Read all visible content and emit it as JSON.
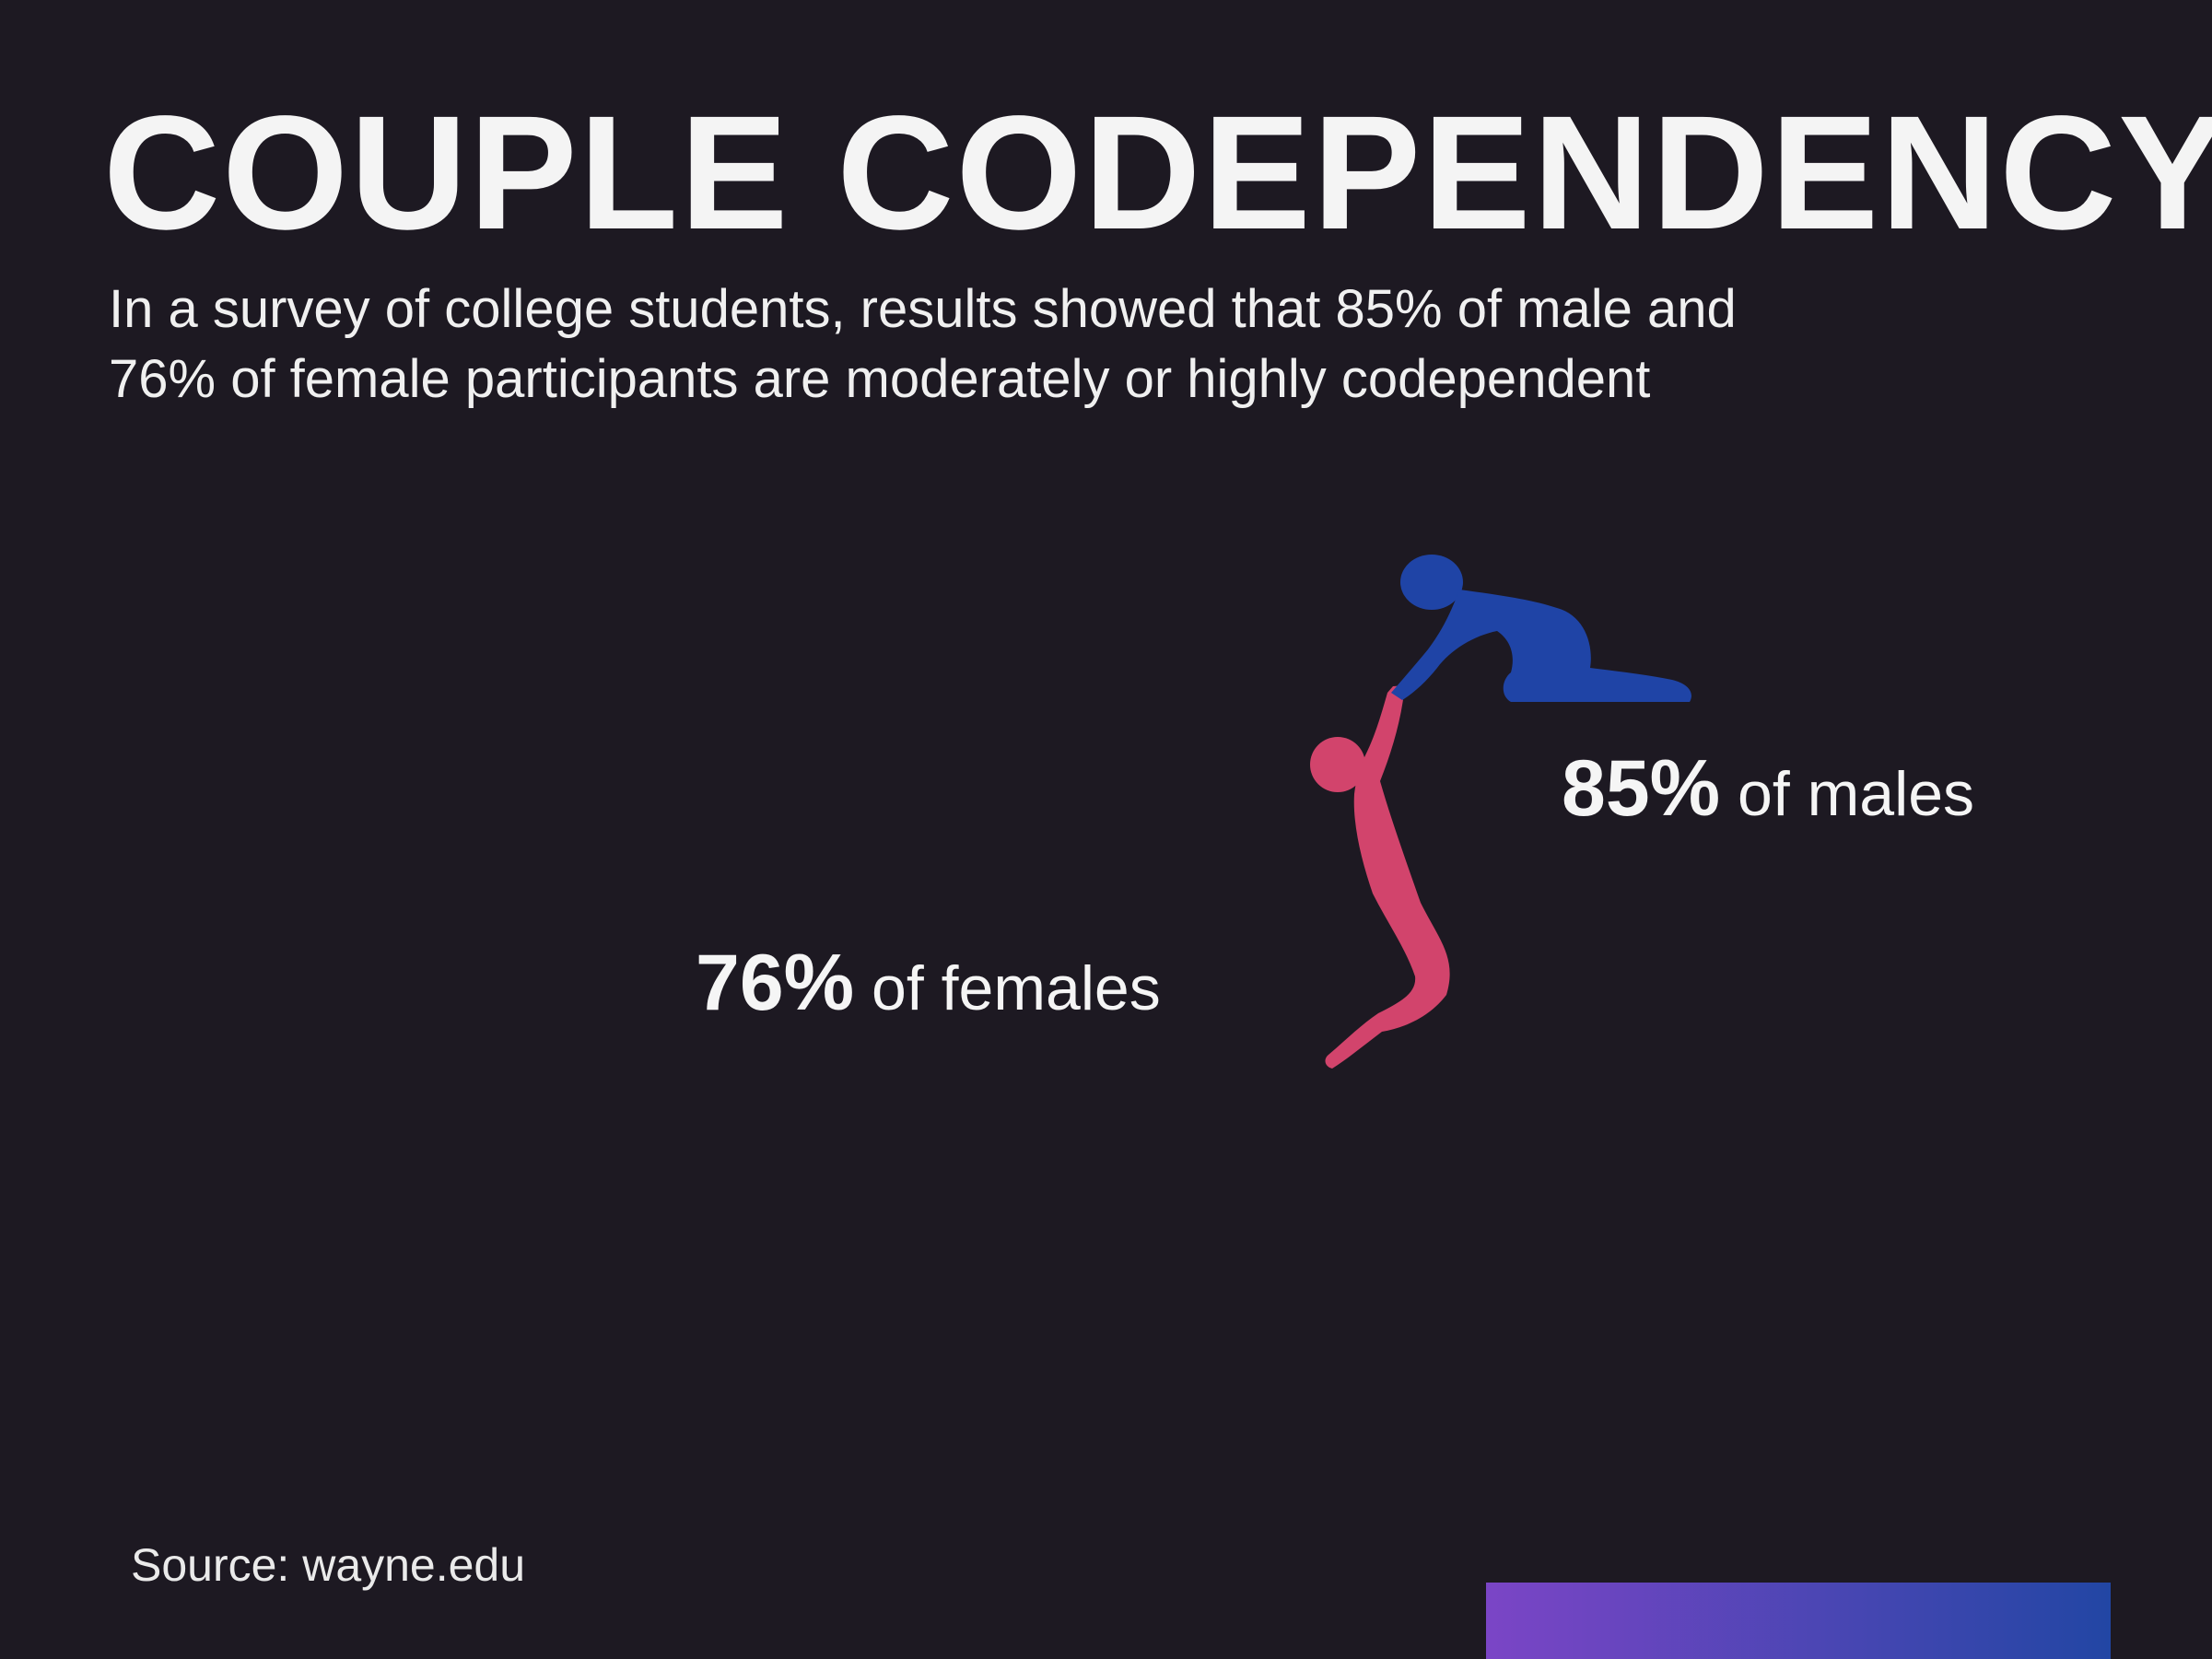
{
  "header": {
    "title": "COUPLE CODEPENDENCY",
    "subtitle_line1": "In a survey of college students, results showed that 85% of male and",
    "subtitle_line2": "76% of female participants are moderately or highly codependent"
  },
  "footer": {
    "source": "Source: wayne.edu"
  },
  "chart_data": {
    "type": "bar",
    "categories": [
      "of females",
      "of males"
    ],
    "values": [
      76,
      85
    ],
    "value_labels": [
      "76%",
      "85%"
    ],
    "ylim": [
      0,
      100
    ],
    "grid": false,
    "legend": "none",
    "colors": {
      "female_start": "#c9446f",
      "female_end": "#a844a8",
      "male_start": "#7b45c6",
      "male_end": "#2246a4",
      "female_figure": "#d2446c",
      "male_figure": "#1f44a6",
      "background": "#1d1922"
    }
  }
}
